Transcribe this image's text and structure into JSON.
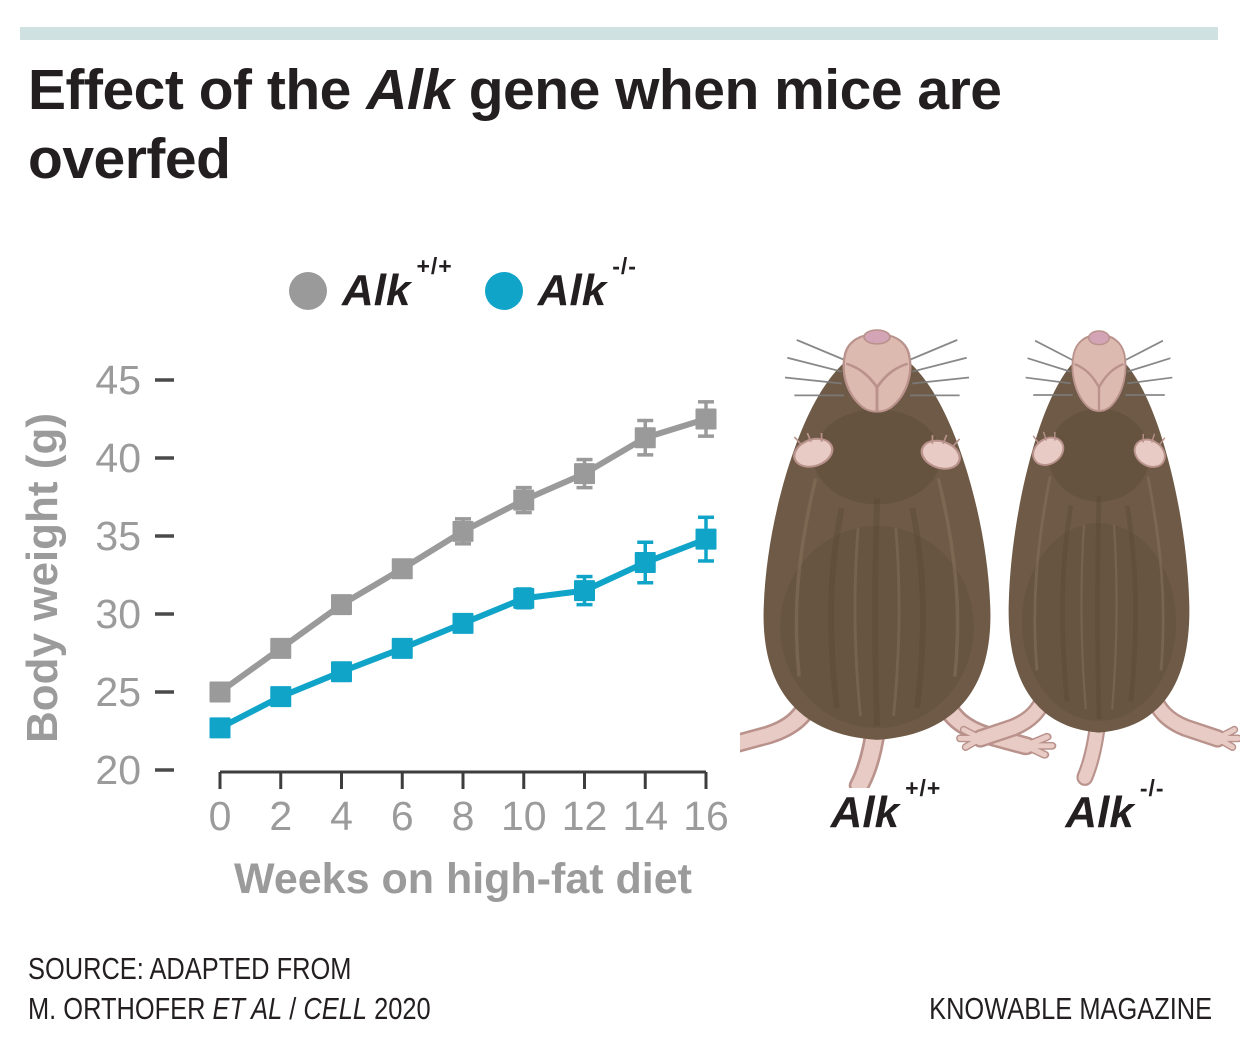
{
  "header": {
    "title_parts": [
      {
        "text": "Effect of the ",
        "italic": false
      },
      {
        "text": "Alk",
        "italic": true
      },
      {
        "text": " gene when mice are",
        "italic": false
      },
      {
        "br": true
      },
      {
        "text": "overfed",
        "italic": false
      }
    ]
  },
  "legend": {
    "items": [
      {
        "name": "Alk",
        "sup": "+/+",
        "color": "#9a9a9a"
      },
      {
        "name": "Alk",
        "sup": "-/-",
        "color": "#11a4c9"
      }
    ]
  },
  "chart_data": {
    "type": "line",
    "title": "Effect of the Alk gene when mice are overfed",
    "xlabel": "Weeks on high-fat diet",
    "ylabel": "Body weight (g)",
    "x": [
      0,
      2,
      4,
      6,
      8,
      10,
      12,
      14,
      16
    ],
    "xticks": [
      0,
      2,
      4,
      6,
      8,
      10,
      12,
      14,
      16
    ],
    "yticks": [
      20,
      25,
      30,
      35,
      40,
      45
    ],
    "xlim": [
      0,
      16
    ],
    "ylim": [
      20,
      45
    ],
    "grid": false,
    "marker": "square",
    "legend_position": "top",
    "series": [
      {
        "name": "Alk +/+",
        "color": "#9a9a9a",
        "values": [
          25.0,
          27.8,
          30.6,
          32.9,
          35.3,
          37.3,
          39.0,
          41.3,
          42.5
        ],
        "errors": [
          0.3,
          0.3,
          0.3,
          0.4,
          0.8,
          0.8,
          0.9,
          1.1,
          1.1
        ]
      },
      {
        "name": "Alk -/-",
        "color": "#11a4c9",
        "values": [
          22.7,
          24.7,
          26.3,
          27.8,
          29.4,
          31.0,
          31.5,
          33.3,
          34.8
        ],
        "errors": [
          0.2,
          0.3,
          0.3,
          0.3,
          0.5,
          0.6,
          0.9,
          1.3,
          1.4
        ]
      }
    ]
  },
  "mice": {
    "captions": [
      {
        "name": "Alk",
        "sup": "+/+"
      },
      {
        "name": "Alk",
        "sup": "-/-"
      }
    ],
    "fur_color": "#6e5a46",
    "fur_dark": "#5c4a38",
    "fur_light": "#83705a",
    "skin_color": "#e8cbc4",
    "skin_outline": "#b9928c",
    "muzzle_color": "#ddbab0",
    "nose_color": "#d2a4b6"
  },
  "footer": {
    "source_line1": "SOURCE: ADAPTED FROM",
    "source_line2_parts": [
      {
        "text": "M. ORTHOFER ",
        "italic": false
      },
      {
        "text": "ET AL",
        "italic": true
      },
      {
        "text": " / ",
        "italic": false
      },
      {
        "text": "CELL",
        "italic": true
      },
      {
        "text": " 2020",
        "italic": false
      }
    ],
    "credit": "KNOWABLE MAGAZINE"
  },
  "colors": {
    "accent_bar": "#cfe1e0",
    "axis": "#3d3d3d",
    "axis_text": "#9b9b9b",
    "title_text": "#231f20"
  }
}
